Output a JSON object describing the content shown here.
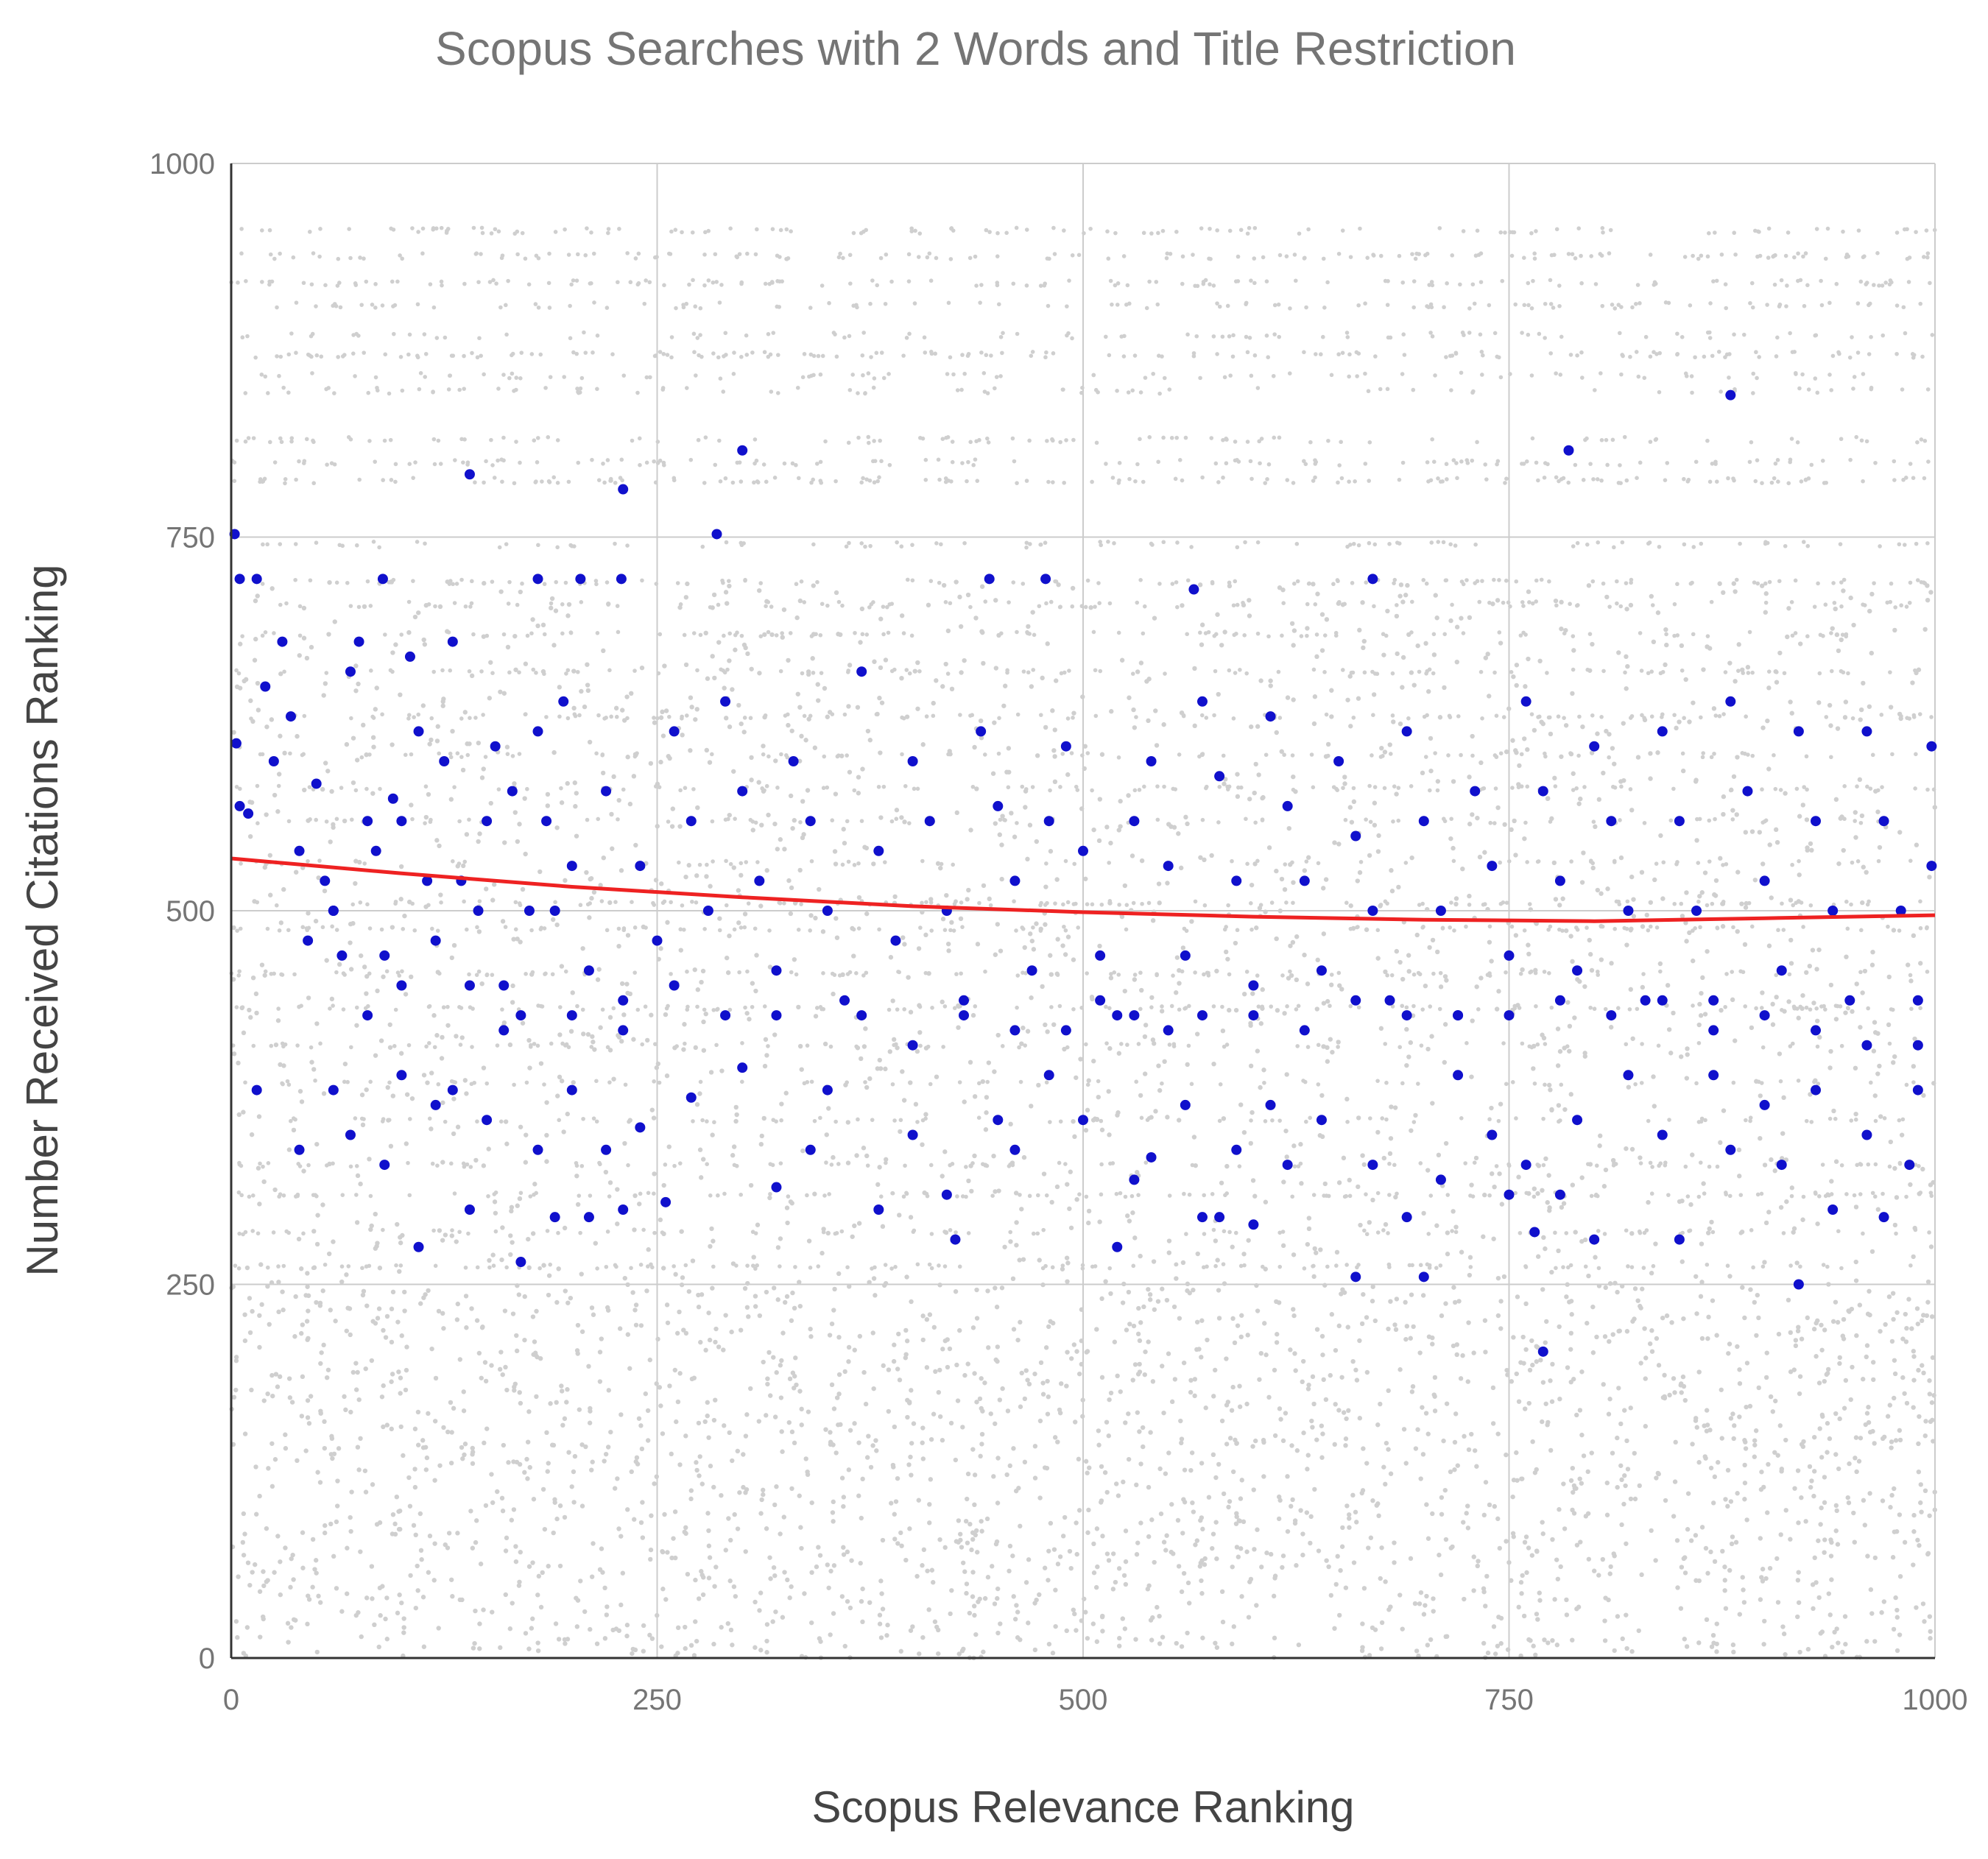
{
  "chart_data": {
    "type": "scatter",
    "title": "Scopus Searches with 2 Words and Title Restriction",
    "xlabel": "Scopus Relevance Ranking",
    "ylabel": "Number Received Citations Ranking",
    "xlim": [
      0,
      1000
    ],
    "ylim": [
      0,
      1000
    ],
    "x_ticks": [
      0,
      250,
      500,
      750,
      1000
    ],
    "y_ticks": [
      0,
      250,
      500,
      750,
      1000
    ],
    "x_tick_labels": [
      "0",
      "250",
      "500",
      "750",
      "1000"
    ],
    "y_tick_labels": [
      "0",
      "250",
      "500",
      "750",
      "1000"
    ],
    "grid": true,
    "colors": {
      "background_points": "#cfcfcf",
      "highlight_points": "#1010cc",
      "trend_line": "#ee2222",
      "grid": "#cccccc"
    },
    "series": [
      {
        "points": [
          [
            2,
            752
          ],
          [
            285,
            752
          ],
          [
            5,
            722
          ],
          [
            15,
            722
          ],
          [
            89,
            722
          ],
          [
            180,
            722
          ],
          [
            205,
            722
          ],
          [
            229,
            722
          ],
          [
            445,
            722
          ],
          [
            478,
            722
          ],
          [
            670,
            722
          ],
          [
            565,
            715
          ],
          [
            140,
            792
          ],
          [
            230,
            782
          ],
          [
            300,
            808
          ],
          [
            785,
            808
          ],
          [
            880,
            845
          ],
          [
            3,
            612
          ],
          [
            5,
            570
          ],
          [
            10,
            565
          ],
          [
            20,
            650
          ],
          [
            25,
            600
          ],
          [
            30,
            680
          ],
          [
            35,
            630
          ],
          [
            40,
            540
          ],
          [
            45,
            480
          ],
          [
            50,
            585
          ],
          [
            55,
            520
          ],
          [
            60,
            500
          ],
          [
            65,
            470
          ],
          [
            70,
            660
          ],
          [
            75,
            680
          ],
          [
            80,
            560
          ],
          [
            85,
            540
          ],
          [
            90,
            470
          ],
          [
            95,
            575
          ],
          [
            100,
            560
          ],
          [
            105,
            670
          ],
          [
            110,
            620
          ],
          [
            115,
            520
          ],
          [
            120,
            480
          ],
          [
            125,
            600
          ],
          [
            130,
            680
          ],
          [
            135,
            520
          ],
          [
            140,
            450
          ],
          [
            145,
            500
          ],
          [
            150,
            560
          ],
          [
            155,
            610
          ],
          [
            160,
            450
          ],
          [
            165,
            580
          ],
          [
            170,
            430
          ],
          [
            175,
            500
          ],
          [
            180,
            620
          ],
          [
            185,
            560
          ],
          [
            190,
            500
          ],
          [
            195,
            640
          ],
          [
            200,
            530
          ],
          [
            210,
            460
          ],
          [
            220,
            580
          ],
          [
            230,
            420
          ],
          [
            240,
            530
          ],
          [
            250,
            480
          ],
          [
            260,
            620
          ],
          [
            270,
            560
          ],
          [
            280,
            500
          ],
          [
            290,
            640
          ],
          [
            300,
            580
          ],
          [
            310,
            520
          ],
          [
            320,
            460
          ],
          [
            330,
            600
          ],
          [
            340,
            560
          ],
          [
            350,
            500
          ],
          [
            360,
            440
          ],
          [
            370,
            660
          ],
          [
            380,
            540
          ],
          [
            390,
            480
          ],
          [
            400,
            600
          ],
          [
            410,
            560
          ],
          [
            420,
            500
          ],
          [
            430,
            440
          ],
          [
            440,
            620
          ],
          [
            450,
            570
          ],
          [
            460,
            520
          ],
          [
            470,
            460
          ],
          [
            480,
            560
          ],
          [
            490,
            610
          ],
          [
            500,
            540
          ],
          [
            510,
            470
          ],
          [
            520,
            430
          ],
          [
            530,
            560
          ],
          [
            540,
            600
          ],
          [
            550,
            530
          ],
          [
            560,
            470
          ],
          [
            570,
            640
          ],
          [
            580,
            590
          ],
          [
            590,
            520
          ],
          [
            600,
            450
          ],
          [
            610,
            630
          ],
          [
            620,
            570
          ],
          [
            630,
            520
          ],
          [
            640,
            460
          ],
          [
            650,
            600
          ],
          [
            660,
            550
          ],
          [
            670,
            500
          ],
          [
            680,
            440
          ],
          [
            690,
            620
          ],
          [
            700,
            560
          ],
          [
            710,
            500
          ],
          [
            720,
            430
          ],
          [
            730,
            580
          ],
          [
            740,
            530
          ],
          [
            750,
            470
          ],
          [
            760,
            640
          ],
          [
            770,
            580
          ],
          [
            780,
            520
          ],
          [
            790,
            460
          ],
          [
            800,
            610
          ],
          [
            810,
            560
          ],
          [
            820,
            500
          ],
          [
            830,
            440
          ],
          [
            840,
            620
          ],
          [
            850,
            560
          ],
          [
            860,
            500
          ],
          [
            870,
            440
          ],
          [
            880,
            640
          ],
          [
            890,
            580
          ],
          [
            900,
            520
          ],
          [
            910,
            460
          ],
          [
            920,
            620
          ],
          [
            930,
            560
          ],
          [
            940,
            500
          ],
          [
            950,
            440
          ],
          [
            960,
            620
          ],
          [
            970,
            560
          ],
          [
            980,
            500
          ],
          [
            990,
            440
          ],
          [
            998,
            610
          ],
          [
            998,
            530
          ],
          [
            15,
            380
          ],
          [
            40,
            340
          ],
          [
            60,
            380
          ],
          [
            70,
            350
          ],
          [
            90,
            330
          ],
          [
            100,
            390
          ],
          [
            110,
            275
          ],
          [
            120,
            370
          ],
          [
            140,
            300
          ],
          [
            150,
            360
          ],
          [
            170,
            265
          ],
          [
            180,
            340
          ],
          [
            190,
            295
          ],
          [
            200,
            380
          ],
          [
            210,
            295
          ],
          [
            220,
            340
          ],
          [
            230,
            300
          ],
          [
            240,
            355
          ],
          [
            255,
            305
          ],
          [
            270,
            375
          ],
          [
            300,
            395
          ],
          [
            320,
            315
          ],
          [
            340,
            340
          ],
          [
            380,
            300
          ],
          [
            400,
            350
          ],
          [
            420,
            310
          ],
          [
            425,
            280
          ],
          [
            450,
            360
          ],
          [
            460,
            340
          ],
          [
            480,
            390
          ],
          [
            500,
            360
          ],
          [
            520,
            275
          ],
          [
            530,
            320
          ],
          [
            540,
            335
          ],
          [
            560,
            370
          ],
          [
            570,
            295
          ],
          [
            580,
            295
          ],
          [
            590,
            340
          ],
          [
            600,
            290
          ],
          [
            610,
            370
          ],
          [
            620,
            330
          ],
          [
            640,
            360
          ],
          [
            660,
            255
          ],
          [
            670,
            330
          ],
          [
            690,
            295
          ],
          [
            700,
            255
          ],
          [
            710,
            320
          ],
          [
            720,
            390
          ],
          [
            740,
            350
          ],
          [
            750,
            310
          ],
          [
            760,
            330
          ],
          [
            765,
            285
          ],
          [
            770,
            205
          ],
          [
            780,
            310
          ],
          [
            790,
            360
          ],
          [
            800,
            280
          ],
          [
            820,
            390
          ],
          [
            840,
            350
          ],
          [
            850,
            280
          ],
          [
            870,
            390
          ],
          [
            880,
            340
          ],
          [
            900,
            370
          ],
          [
            910,
            330
          ],
          [
            920,
            250
          ],
          [
            930,
            380
          ],
          [
            940,
            300
          ],
          [
            960,
            350
          ],
          [
            970,
            295
          ],
          [
            985,
            330
          ],
          [
            990,
            380
          ],
          [
            60,
            500
          ],
          [
            80,
            430
          ],
          [
            100,
            450
          ],
          [
            130,
            380
          ],
          [
            160,
            420
          ],
          [
            200,
            430
          ],
          [
            230,
            440
          ],
          [
            260,
            450
          ],
          [
            290,
            430
          ],
          [
            320,
            430
          ],
          [
            350,
            380
          ],
          [
            370,
            430
          ],
          [
            400,
            410
          ],
          [
            430,
            430
          ],
          [
            460,
            420
          ],
          [
            490,
            420
          ],
          [
            510,
            440
          ],
          [
            530,
            430
          ],
          [
            550,
            420
          ],
          [
            570,
            430
          ],
          [
            600,
            430
          ],
          [
            630,
            420
          ],
          [
            660,
            440
          ],
          [
            690,
            430
          ],
          [
            720,
            430
          ],
          [
            750,
            430
          ],
          [
            780,
            440
          ],
          [
            810,
            430
          ],
          [
            840,
            440
          ],
          [
            870,
            420
          ],
          [
            900,
            430
          ],
          [
            930,
            420
          ],
          [
            960,
            410
          ],
          [
            990,
            410
          ]
        ]
      }
    ],
    "trend_line": {
      "x": [
        0,
        100,
        200,
        300,
        400,
        500,
        600,
        700,
        800,
        900,
        1000
      ],
      "y": [
        535,
        525,
        516,
        509,
        503,
        499,
        496,
        494,
        493,
        495,
        497
      ]
    }
  }
}
